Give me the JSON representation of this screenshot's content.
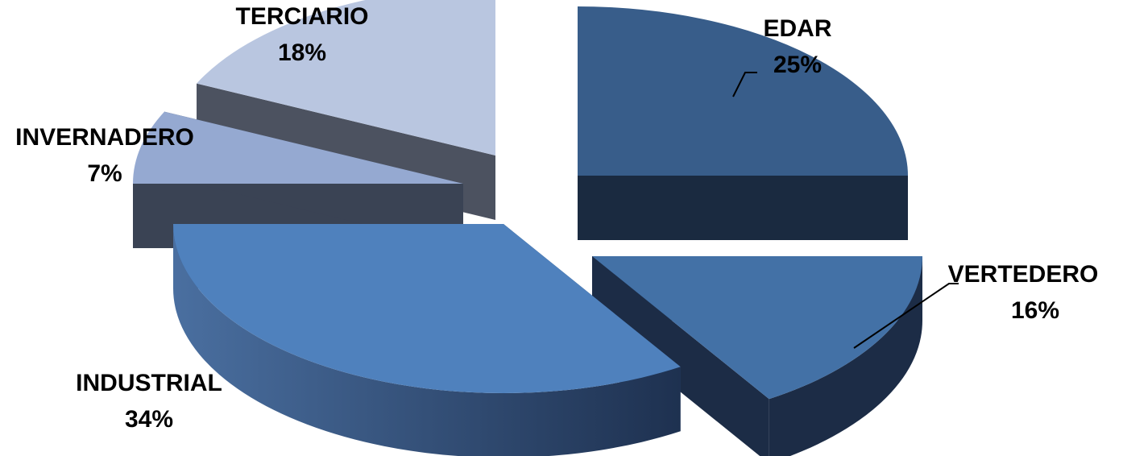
{
  "chart_data": {
    "type": "pie",
    "style": "3d-exploded",
    "slices": [
      {
        "label": "EDAR",
        "value": 25,
        "value_label": "25%",
        "color": "#385d8a",
        "side_color": "#1a2a40"
      },
      {
        "label": "VERTEDERO",
        "value": 16,
        "value_label": "16%",
        "color": "#4371a6",
        "side_color": "#1c2c46"
      },
      {
        "label": "INDUSTRIAL",
        "value": 34,
        "value_label": "34%",
        "color": "#4f81bd",
        "side_color": "#2e4a70"
      },
      {
        "label": "INVERNADERO",
        "value": 7,
        "value_label": "7%",
        "color": "#95a9d1",
        "side_color": "#3a4354"
      },
      {
        "label": "TERCIARIO",
        "value": 18,
        "value_label": "18%",
        "color": "#b9c6e0",
        "side_color": "#4c5260"
      }
    ]
  }
}
